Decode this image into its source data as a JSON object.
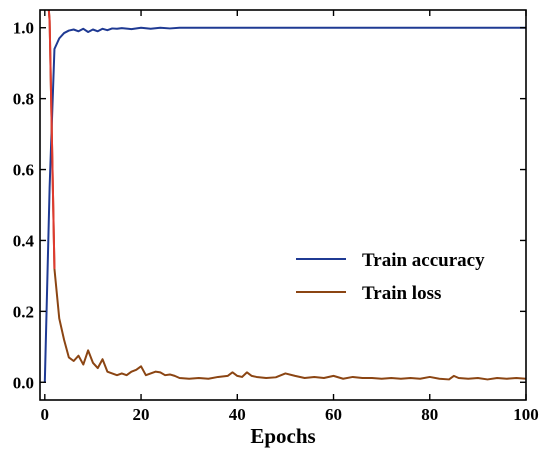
{
  "chart_data": {
    "type": "line",
    "title": "",
    "xlabel": "Epochs",
    "ylabel": "",
    "xlim": [
      -1,
      100
    ],
    "ylim": [
      -0.05,
      1.05
    ],
    "x_ticks": [
      0,
      20,
      40,
      60,
      80,
      100
    ],
    "y_ticks": [
      0.0,
      0.2,
      0.4,
      0.6,
      0.8,
      1.0
    ],
    "x_tick_labels": [
      "0",
      "20",
      "40",
      "60",
      "80",
      "100"
    ],
    "y_tick_labels": [
      "0.0",
      "0.2",
      "0.4",
      "0.6",
      "0.8",
      "1.0"
    ],
    "grid": false,
    "legend_position": "center-right",
    "series": [
      {
        "name": "Train accuracy",
        "color": "#1f3a93",
        "x": [
          0,
          1,
          2,
          3,
          4,
          5,
          6,
          7,
          8,
          9,
          10,
          11,
          12,
          13,
          14,
          15,
          16,
          18,
          20,
          22,
          24,
          26,
          28,
          30,
          40,
          50,
          60,
          70,
          80,
          90,
          100
        ],
        "y": [
          0.0,
          0.55,
          0.94,
          0.97,
          0.985,
          0.992,
          0.995,
          0.99,
          0.997,
          0.988,
          0.995,
          0.99,
          0.997,
          0.993,
          0.998,
          0.997,
          0.999,
          0.996,
          1.0,
          0.997,
          1.0,
          0.998,
          1.0,
          1.0,
          1.0,
          1.0,
          1.0,
          1.0,
          1.0,
          1.0,
          1.0
        ]
      },
      {
        "name": "Train loss",
        "color": "#8b4513",
        "x": [
          0,
          1,
          2,
          3,
          4,
          5,
          6,
          7,
          8,
          9,
          10,
          11,
          12,
          13,
          14,
          15,
          16,
          17,
          18,
          19,
          20,
          21,
          22,
          23,
          24,
          25,
          26,
          27,
          28,
          30,
          32,
          34,
          36,
          38,
          39,
          40,
          41,
          42,
          43,
          44,
          46,
          48,
          50,
          52,
          54,
          56,
          58,
          60,
          62,
          64,
          66,
          68,
          70,
          72,
          74,
          76,
          78,
          80,
          82,
          84,
          85,
          86,
          88,
          90,
          92,
          94,
          96,
          98,
          100
        ],
        "y": [
          1.2,
          1.02,
          0.32,
          0.18,
          0.12,
          0.07,
          0.06,
          0.075,
          0.05,
          0.09,
          0.055,
          0.04,
          0.065,
          0.03,
          0.025,
          0.02,
          0.025,
          0.02,
          0.03,
          0.035,
          0.045,
          0.02,
          0.025,
          0.03,
          0.028,
          0.02,
          0.022,
          0.018,
          0.012,
          0.01,
          0.012,
          0.01,
          0.015,
          0.018,
          0.028,
          0.018,
          0.015,
          0.028,
          0.018,
          0.015,
          0.012,
          0.014,
          0.025,
          0.018,
          0.012,
          0.015,
          0.012,
          0.018,
          0.01,
          0.015,
          0.012,
          0.012,
          0.01,
          0.012,
          0.01,
          0.012,
          0.01,
          0.015,
          0.01,
          0.008,
          0.018,
          0.012,
          0.01,
          0.012,
          0.008,
          0.012,
          0.01,
          0.012,
          0.01
        ]
      }
    ]
  }
}
